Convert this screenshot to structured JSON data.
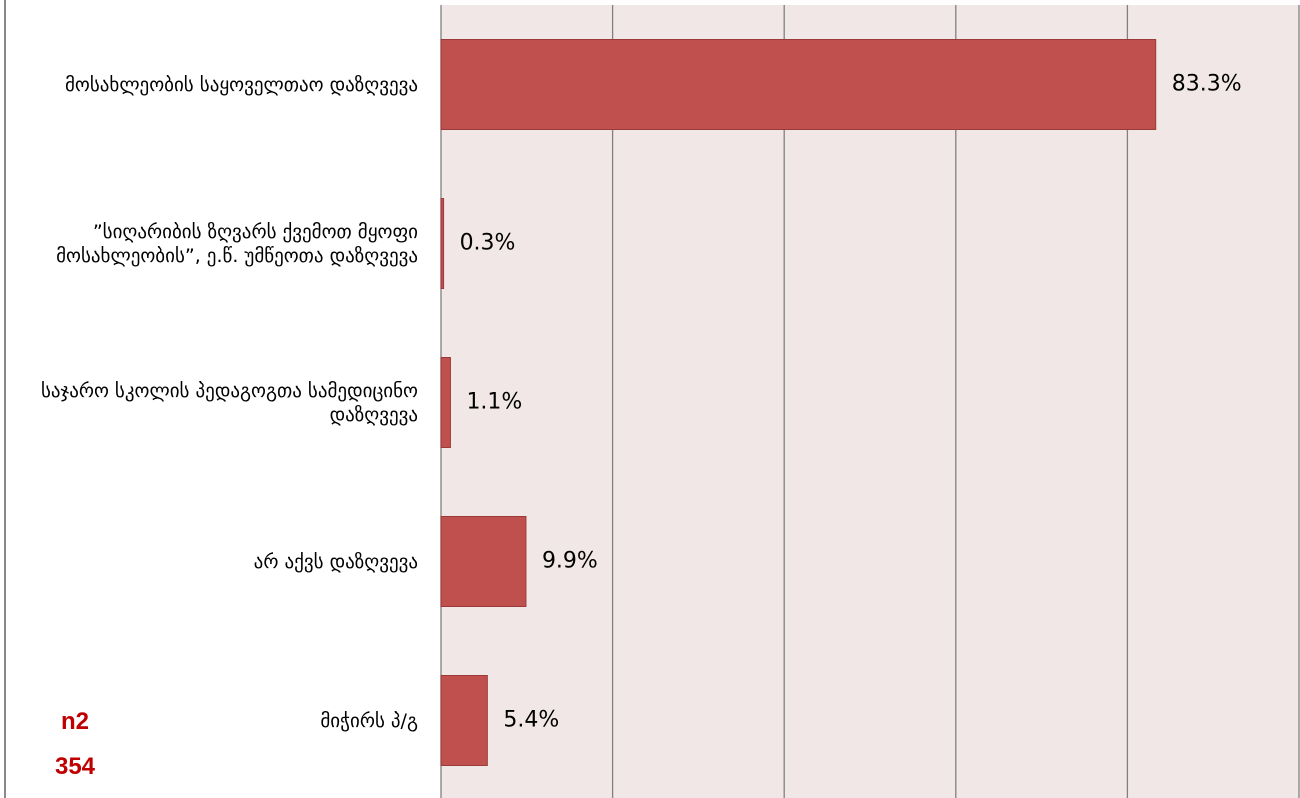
{
  "chart_data": {
    "type": "barh",
    "categories": [
      "მოსახლეობის საყოველთაო დაზღვევა",
      "”სიღარიბის ზღვარს ქვემოთ მყოფი მოსახლეობის”, ე.წ. უმწეოთა დაზღვევა",
      "საჯარო სკოლის პედაგოგთა სამედიცინო დაზღვევა",
      "არ აქვს დაზღვევა",
      "მიჭირს პ/გ"
    ],
    "values": [
      83.3,
      0.3,
      1.1,
      9.9,
      5.4
    ],
    "value_labels": [
      "83.3%",
      "0.3%",
      "1.1%",
      "9.9%",
      "5.4%"
    ],
    "color": "#c0504d",
    "xlim": [
      0,
      100
    ],
    "xticks": [
      0,
      20,
      40,
      60,
      80,
      100
    ],
    "grid": true,
    "annotations": [
      "n2",
      "354"
    ]
  }
}
